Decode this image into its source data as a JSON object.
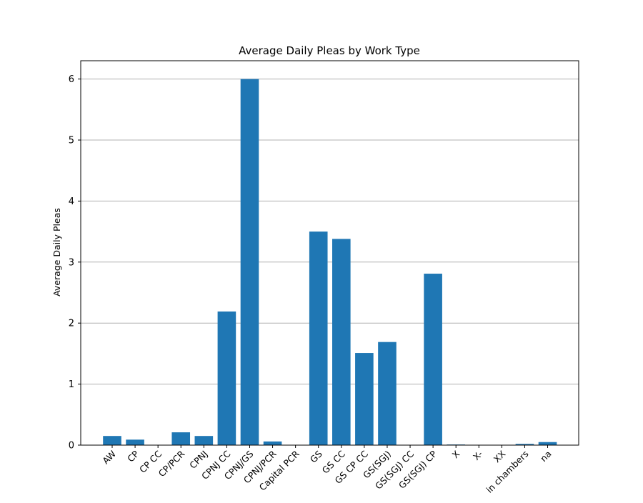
{
  "chart_data": {
    "type": "bar",
    "title": "Average Daily Pleas by Work Type",
    "xlabel": "",
    "ylabel": "Average Daily Pleas",
    "categories": [
      "AW",
      "CP",
      "CP CC",
      "CP/PCR",
      "CPNJ",
      "CPNJ CC",
      "CPNJ/GS",
      "CPNJ/PCR",
      "Capital PCR",
      "GS",
      "GS CC",
      "GS CP CC",
      "GS(SGJ)",
      "GS(SGJ) CC",
      "GS(SGJ) CP",
      "X",
      "X-",
      "XX",
      "in chambers",
      "na"
    ],
    "values": [
      0.15,
      0.09,
      0.0,
      0.21,
      0.15,
      2.19,
      6.0,
      0.06,
      0.0,
      3.5,
      3.38,
      1.51,
      1.69,
      0.0,
      2.81,
      0.01,
      0.0,
      0.0,
      0.02,
      0.05
    ],
    "ylim": [
      0,
      6.3
    ],
    "yticks": [
      0,
      1,
      2,
      3,
      4,
      5,
      6
    ],
    "grid": "horizontal",
    "bar_color": "#1f77b4",
    "grid_color": "#b0b0b0"
  }
}
